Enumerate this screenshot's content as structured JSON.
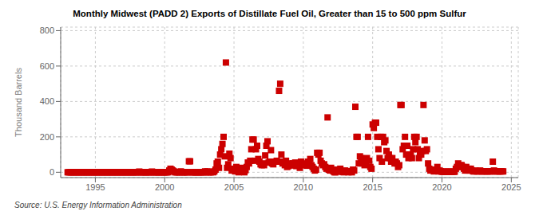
{
  "chart_data": {
    "type": "scatter",
    "title": "Monthly Midwest (PADD 2) Exports of Distillate Fuel Oil, Greater than 15 to 500 ppm Sulfur",
    "ylabel": "Thousand Barrels",
    "source": "Source: U.S. Energy Information Administration",
    "color": "#cc0000",
    "marker": "square",
    "grid": true,
    "xlim": [
      1992.5,
      2025.5
    ],
    "ylim": [
      -30,
      820
    ],
    "xticks": [
      1995,
      2000,
      2005,
      2010,
      2015,
      2020,
      2025
    ],
    "yticks": [
      0,
      200,
      400,
      600,
      800
    ],
    "x": [
      1993.0,
      1993.083,
      1993.167,
      1993.25,
      1993.333,
      1993.417,
      1993.5,
      1993.583,
      1993.667,
      1993.75,
      1993.833,
      1993.917,
      1994.0,
      1994.083,
      1994.167,
      1994.25,
      1994.333,
      1994.417,
      1994.5,
      1994.583,
      1994.667,
      1994.75,
      1994.833,
      1994.917,
      1995.0,
      1995.083,
      1995.167,
      1995.25,
      1995.333,
      1995.417,
      1995.5,
      1995.583,
      1995.667,
      1995.75,
      1995.833,
      1995.917,
      1996.0,
      1996.083,
      1996.167,
      1996.25,
      1996.333,
      1996.417,
      1996.5,
      1996.583,
      1996.667,
      1996.75,
      1996.833,
      1996.917,
      1997.0,
      1997.083,
      1997.167,
      1997.25,
      1997.333,
      1997.417,
      1997.5,
      1997.583,
      1997.667,
      1997.75,
      1997.833,
      1997.917,
      1998.0,
      1998.083,
      1998.167,
      1998.25,
      1998.333,
      1998.417,
      1998.5,
      1998.583,
      1998.667,
      1998.75,
      1998.833,
      1998.917,
      1999.0,
      1999.083,
      1999.167,
      1999.25,
      1999.333,
      1999.417,
      1999.5,
      1999.583,
      1999.667,
      1999.75,
      1999.833,
      1999.917,
      2000.0,
      2000.083,
      2000.167,
      2000.25,
      2000.333,
      2000.417,
      2000.5,
      2000.583,
      2000.667,
      2000.75,
      2000.833,
      2000.917,
      2001.0,
      2001.083,
      2001.167,
      2001.25,
      2001.333,
      2001.417,
      2001.5,
      2001.583,
      2001.667,
      2001.75,
      2001.833,
      2001.917,
      2002.0,
      2002.083,
      2002.167,
      2002.25,
      2002.333,
      2002.417,
      2002.5,
      2002.583,
      2002.667,
      2002.75,
      2002.833,
      2002.917,
      2003.0,
      2003.083,
      2003.167,
      2003.25,
      2003.333,
      2003.417,
      2003.5,
      2003.583,
      2003.667,
      2003.75,
      2003.833,
      2003.917,
      2004.0,
      2004.083,
      2004.167,
      2004.25,
      2004.333,
      2004.417,
      2004.5,
      2004.583,
      2004.667,
      2004.75,
      2004.833,
      2004.917,
      2005.0,
      2005.083,
      2005.167,
      2005.25,
      2005.333,
      2005.417,
      2005.5,
      2005.583,
      2005.667,
      2005.75,
      2005.833,
      2005.917,
      2006.0,
      2006.083,
      2006.167,
      2006.25,
      2006.333,
      2006.417,
      2006.5,
      2006.583,
      2006.667,
      2006.75,
      2006.833,
      2006.917,
      2007.0,
      2007.083,
      2007.167,
      2007.25,
      2007.333,
      2007.417,
      2007.5,
      2007.583,
      2007.667,
      2007.75,
      2007.833,
      2007.917,
      2008.0,
      2008.083,
      2008.167,
      2008.25,
      2008.333,
      2008.417,
      2008.5,
      2008.583,
      2008.667,
      2008.75,
      2008.833,
      2008.917,
      2009.0,
      2009.083,
      2009.167,
      2009.25,
      2009.333,
      2009.417,
      2009.5,
      2009.583,
      2009.667,
      2009.75,
      2009.833,
      2009.917,
      2010.0,
      2010.083,
      2010.167,
      2010.25,
      2010.333,
      2010.417,
      2010.5,
      2010.583,
      2010.667,
      2010.75,
      2010.833,
      2010.917,
      2011.0,
      2011.083,
      2011.167,
      2011.25,
      2011.333,
      2011.417,
      2011.5,
      2011.583,
      2011.667,
      2011.75,
      2011.833,
      2011.917,
      2012.0,
      2012.083,
      2012.167,
      2012.25,
      2012.333,
      2012.417,
      2012.5,
      2012.583,
      2012.667,
      2012.75,
      2012.833,
      2012.917,
      2013.0,
      2013.083,
      2013.167,
      2013.25,
      2013.333,
      2013.417,
      2013.5,
      2013.583,
      2013.667,
      2013.75,
      2013.833,
      2013.917,
      2014.0,
      2014.083,
      2014.167,
      2014.25,
      2014.333,
      2014.417,
      2014.5,
      2014.583,
      2014.667,
      2014.75,
      2014.833,
      2014.917,
      2015.0,
      2015.083,
      2015.167,
      2015.25,
      2015.333,
      2015.417,
      2015.5,
      2015.583,
      2015.667,
      2015.75,
      2015.833,
      2015.917,
      2016.0,
      2016.083,
      2016.167,
      2016.25,
      2016.333,
      2016.417,
      2016.5,
      2016.583,
      2016.667,
      2016.75,
      2016.833,
      2016.917,
      2017.0,
      2017.083,
      2017.167,
      2017.25,
      2017.333,
      2017.417,
      2017.5,
      2017.583,
      2017.667,
      2017.75,
      2017.833,
      2017.917,
      2018.0,
      2018.083,
      2018.167,
      2018.25,
      2018.333,
      2018.417,
      2018.5,
      2018.583,
      2018.667,
      2018.75,
      2018.833,
      2018.917,
      2019.0,
      2019.083,
      2019.167,
      2019.25,
      2019.333,
      2019.417,
      2019.5,
      2019.583,
      2019.667,
      2019.75,
      2019.833,
      2019.917,
      2020.0,
      2020.083,
      2020.167,
      2020.25,
      2020.333,
      2020.417,
      2020.5,
      2020.583,
      2020.667,
      2020.75,
      2020.833,
      2020.917,
      2021.0,
      2021.083,
      2021.167,
      2021.25,
      2021.333,
      2021.417,
      2021.5,
      2021.583,
      2021.667,
      2021.75,
      2021.833,
      2021.917,
      2022.0,
      2022.083,
      2022.167,
      2022.25,
      2022.333,
      2022.417,
      2022.5,
      2022.583,
      2022.667,
      2022.75,
      2022.833,
      2022.917,
      2023.0,
      2023.083,
      2023.167,
      2023.25,
      2023.333,
      2023.417,
      2023.5,
      2023.583,
      2023.667,
      2023.75,
      2023.833,
      2023.917,
      2024.0,
      2024.083,
      2024.167,
      2024.25,
      2024.333,
      2024.417
    ],
    "values": [
      0,
      0,
      0,
      0,
      0,
      0,
      0,
      0,
      0,
      0,
      0,
      0,
      0,
      0,
      0,
      0,
      0,
      0,
      0,
      0,
      0,
      0,
      0,
      0,
      0,
      0,
      0,
      0,
      0,
      0,
      0,
      0,
      0,
      0,
      0,
      0,
      0,
      0,
      0,
      0,
      0,
      0,
      0,
      0,
      0,
      0,
      0,
      0,
      0,
      0,
      0,
      0,
      0,
      0,
      0,
      0,
      0,
      0,
      0,
      0,
      0,
      0,
      4,
      0,
      0,
      0,
      0,
      0,
      0,
      0,
      0,
      0,
      0,
      4,
      0,
      0,
      0,
      0,
      0,
      0,
      0,
      0,
      0,
      0,
      0,
      0,
      0,
      0,
      10,
      20,
      15,
      10,
      5,
      0,
      0,
      0,
      0,
      0,
      5,
      0,
      0,
      0,
      0,
      0,
      0,
      62,
      62,
      0,
      0,
      0,
      0,
      0,
      0,
      0,
      0,
      0,
      0,
      0,
      0,
      5,
      0,
      5,
      0,
      0,
      0,
      3,
      0,
      5,
      15,
      50,
      60,
      25,
      100,
      130,
      160,
      200,
      90,
      620,
      25,
      45,
      105,
      80,
      10,
      15,
      20,
      5,
      30,
      15,
      0,
      15,
      25,
      10,
      15,
      0,
      12,
      30,
      55,
      50,
      65,
      130,
      185,
      185,
      65,
      130,
      150,
      75,
      60,
      45,
      40,
      50,
      40,
      95,
      150,
      175,
      55,
      60,
      125,
      50,
      45,
      60,
      60,
      65,
      60,
      460,
      500,
      100,
      50,
      60,
      40,
      65,
      30,
      35,
      50,
      40,
      40,
      50,
      40,
      55,
      35,
      40,
      50,
      25,
      60,
      45,
      40,
      45,
      50,
      37,
      60,
      50,
      75,
      40,
      30,
      20,
      10,
      15,
      110,
      100,
      110,
      65,
      50,
      40,
      45,
      30,
      20,
      310,
      15,
      10,
      25,
      15,
      5,
      0,
      0,
      15,
      7,
      5,
      20,
      5,
      2,
      0,
      10,
      5,
      7,
      0,
      5,
      2,
      0,
      15,
      10,
      370,
      200,
      200,
      50,
      90,
      80,
      50,
      70,
      40,
      50,
      80,
      200,
      65,
      30,
      20,
      270,
      250,
      280,
      280,
      200,
      130,
      80,
      200,
      60,
      200,
      170,
      180,
      120,
      80,
      100,
      80,
      60,
      80,
      60,
      50,
      60,
      50,
      30,
      40,
      380,
      380,
      130,
      150,
      200,
      100,
      150,
      80,
      100,
      100,
      80,
      130,
      200,
      170,
      200,
      130,
      80,
      100,
      100,
      120,
      380,
      180,
      120,
      130,
      50,
      20,
      10,
      15,
      10,
      5,
      10,
      10,
      30,
      5,
      10,
      5,
      3,
      3,
      3,
      3,
      3,
      3,
      3,
      3,
      3,
      3,
      3,
      3,
      20,
      30,
      50,
      30,
      40,
      40,
      30,
      20,
      10,
      30,
      10,
      20,
      10,
      20,
      10,
      5,
      5,
      10,
      5,
      5,
      5,
      10,
      5,
      5,
      5,
      5,
      5,
      5,
      5,
      5,
      5,
      5,
      60,
      10,
      5,
      5,
      5,
      5,
      5,
      5,
      5,
      5
    ]
  }
}
